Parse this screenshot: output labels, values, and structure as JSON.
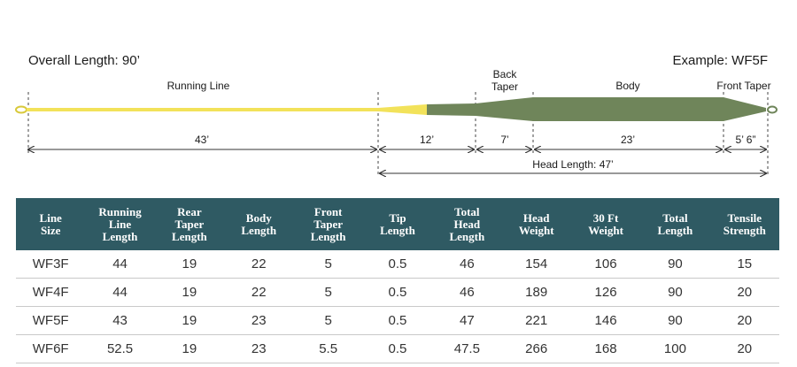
{
  "diagram": {
    "overall_length": "Overall Length: 90’",
    "example": "Example: WF5F",
    "labels": {
      "running_line": "Running Line",
      "back_taper": "Back\nTaper",
      "body": "Body",
      "front_taper": "Front Taper"
    },
    "dimensions": {
      "running": "43’",
      "rear": "12’",
      "back": "7’",
      "body": "23’",
      "front": "5’ 6”",
      "head": "Head Length: 47’"
    },
    "colors": {
      "running_line": "#f2e25a",
      "head": "#6f855a",
      "table_header": "#2f5a63"
    }
  },
  "table": {
    "headers": [
      "Line\nSize",
      "Running\nLine\nLength",
      "Rear\nTaper\nLength",
      "Body\nLength",
      "Front\nTaper\nLength",
      "Tip\nLength",
      "Total\nHead\nLength",
      "Head\nWeight",
      "30 Ft\nWeight",
      "Total\nLength",
      "Tensile\nStrength"
    ],
    "rows": [
      [
        "WF3F",
        "44",
        "19",
        "22",
        "5",
        "0.5",
        "46",
        "154",
        "106",
        "90",
        "15"
      ],
      [
        "WF4F",
        "44",
        "19",
        "22",
        "5",
        "0.5",
        "46",
        "189",
        "126",
        "90",
        "20"
      ],
      [
        "WF5F",
        "43",
        "19",
        "23",
        "5",
        "0.5",
        "47",
        "221",
        "146",
        "90",
        "20"
      ],
      [
        "WF6F",
        "52.5",
        "19",
        "23",
        "5.5",
        "0.5",
        "47.5",
        "266",
        "168",
        "100",
        "20"
      ]
    ]
  }
}
